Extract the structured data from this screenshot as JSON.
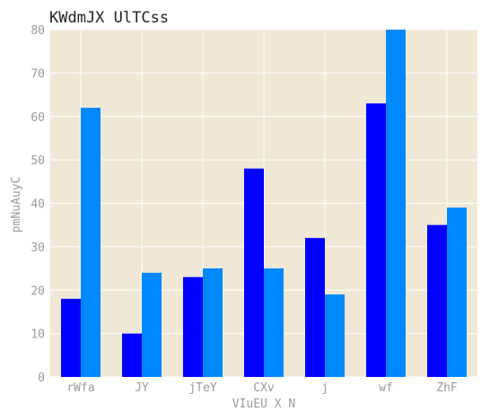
{
  "chart_data": {
    "type": "bar",
    "title": "KWdmJX UlTCss",
    "xlabel": "VIuEU X  N",
    "ylabel": "pmNuAuyC",
    "categories": [
      "rWfa",
      "JY",
      "jTeY",
      "CXv",
      "j",
      "wf",
      "ZhF"
    ],
    "series": [
      {
        "color": "#0000ff",
        "values": [
          18,
          10,
          23,
          48,
          32,
          63,
          35
        ]
      },
      {
        "color": "#0088ff",
        "values": [
          62,
          24,
          25,
          25,
          19,
          80,
          39
        ]
      }
    ],
    "ylim": [
      0,
      80
    ],
    "yticks": [
      0,
      10,
      20,
      30,
      40,
      50,
      60,
      70,
      80
    ],
    "grid": true,
    "background": "#efe8d6",
    "grid_color": "#ffffff"
  }
}
